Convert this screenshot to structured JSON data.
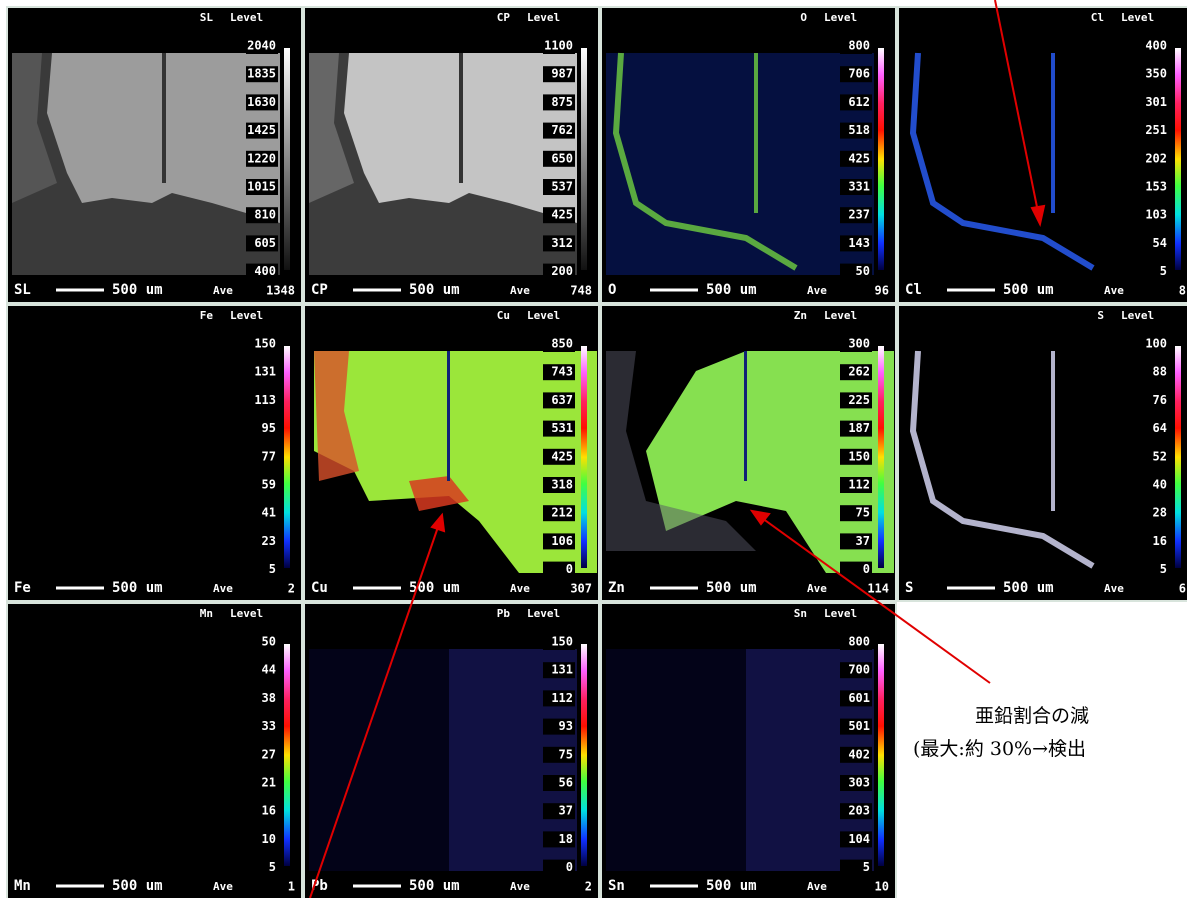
{
  "level_heading": "Level",
  "scale_text": "500 um",
  "ave_text": "Ave",
  "panels": [
    {
      "label": "SL",
      "levels": [
        "2040",
        "1835",
        "1630",
        "1425",
        "1220",
        "1015",
        "810",
        "605",
        "400"
      ],
      "ave": "1348"
    },
    {
      "label": "CP",
      "levels": [
        "1100",
        "987",
        "875",
        "762",
        "650",
        "537",
        "425",
        "312",
        "200"
      ],
      "ave": "748"
    },
    {
      "label": "O",
      "levels": [
        "800",
        "706",
        "612",
        "518",
        "425",
        "331",
        "237",
        "143",
        "50"
      ],
      "ave": "96"
    },
    {
      "label": "Cl",
      "levels": [
        "400",
        "350",
        "301",
        "251",
        "202",
        "153",
        "103",
        "54",
        "5"
      ],
      "ave": "8"
    },
    {
      "label": "Fe",
      "levels": [
        "150",
        "131",
        "113",
        "95",
        "77",
        "59",
        "41",
        "23",
        "5"
      ],
      "ave": "2"
    },
    {
      "label": "Cu",
      "levels": [
        "850",
        "743",
        "637",
        "531",
        "425",
        "318",
        "212",
        "106",
        "0"
      ],
      "ave": "307"
    },
    {
      "label": "Zn",
      "levels": [
        "300",
        "262",
        "225",
        "187",
        "150",
        "112",
        "75",
        "37",
        "0"
      ],
      "ave": "114"
    },
    {
      "label": "S",
      "levels": [
        "100",
        "88",
        "76",
        "64",
        "52",
        "40",
        "28",
        "16",
        "5"
      ],
      "ave": "6"
    },
    {
      "label": "Mn",
      "levels": [
        "50",
        "44",
        "38",
        "33",
        "27",
        "21",
        "16",
        "10",
        "5"
      ],
      "ave": "1"
    },
    {
      "label": "Pb",
      "levels": [
        "150",
        "131",
        "112",
        "93",
        "75",
        "56",
        "37",
        "18",
        "0"
      ],
      "ave": "2"
    },
    {
      "label": "Sn",
      "levels": [
        "800",
        "700",
        "601",
        "501",
        "402",
        "303",
        "203",
        "104",
        "5"
      ],
      "ave": "10"
    }
  ],
  "annotation": {
    "line1": "亜鉛割合の減",
    "line2": "(最大:約 30%→検出"
  }
}
